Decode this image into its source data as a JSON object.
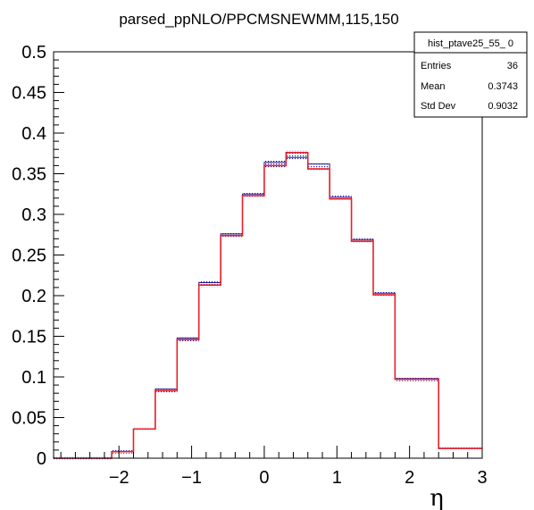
{
  "chart_data": {
    "type": "histogram",
    "title": "parsed_ppNLO/PPCMSNEWMM,115,150",
    "xlabel": "η",
    "ylabel": "",
    "xlim": [
      -2.9,
      3.0
    ],
    "ylim": [
      0,
      0.5
    ],
    "x_ticks": [
      "−2",
      "−1",
      "0",
      "1",
      "2",
      "3"
    ],
    "y_ticks": [
      "0",
      "0.05",
      "0.1",
      "0.15",
      "0.2",
      "0.25",
      "0.3",
      "0.35",
      "0.4",
      "0.45",
      "0.5"
    ],
    "stats_box": {
      "name": "hist_ptave25_55_ 0",
      "rows": [
        {
          "label": "Entries",
          "value": "36"
        },
        {
          "label": "Mean",
          "value": "0.3743"
        },
        {
          "label": "Std Dev",
          "value": "0.9032"
        }
      ]
    },
    "bin_edges": [
      -2.9,
      -2.1,
      -1.8,
      -1.5,
      -1.2,
      -0.9,
      -0.6,
      -0.3,
      0.0,
      0.3,
      0.6,
      0.9,
      1.2,
      1.5,
      1.8,
      2.4,
      3.0
    ],
    "series": [
      {
        "values": [
          0.0,
          0.008,
          0.036,
          0.083,
          0.146,
          0.213,
          0.274,
          0.323,
          0.36,
          0.376,
          0.356,
          0.319,
          0.267,
          0.201,
          0.097,
          0.012
        ],
        "color": "#e8202a",
        "style": "step"
      },
      {
        "values": [
          0.0,
          0.008,
          0.036,
          0.085,
          0.148,
          0.216,
          0.276,
          0.325,
          0.364,
          0.37,
          0.362,
          0.321,
          0.269,
          0.203,
          0.098,
          0.012
        ],
        "color": "#1b1b9c",
        "style": "hatched-fill"
      }
    ]
  }
}
